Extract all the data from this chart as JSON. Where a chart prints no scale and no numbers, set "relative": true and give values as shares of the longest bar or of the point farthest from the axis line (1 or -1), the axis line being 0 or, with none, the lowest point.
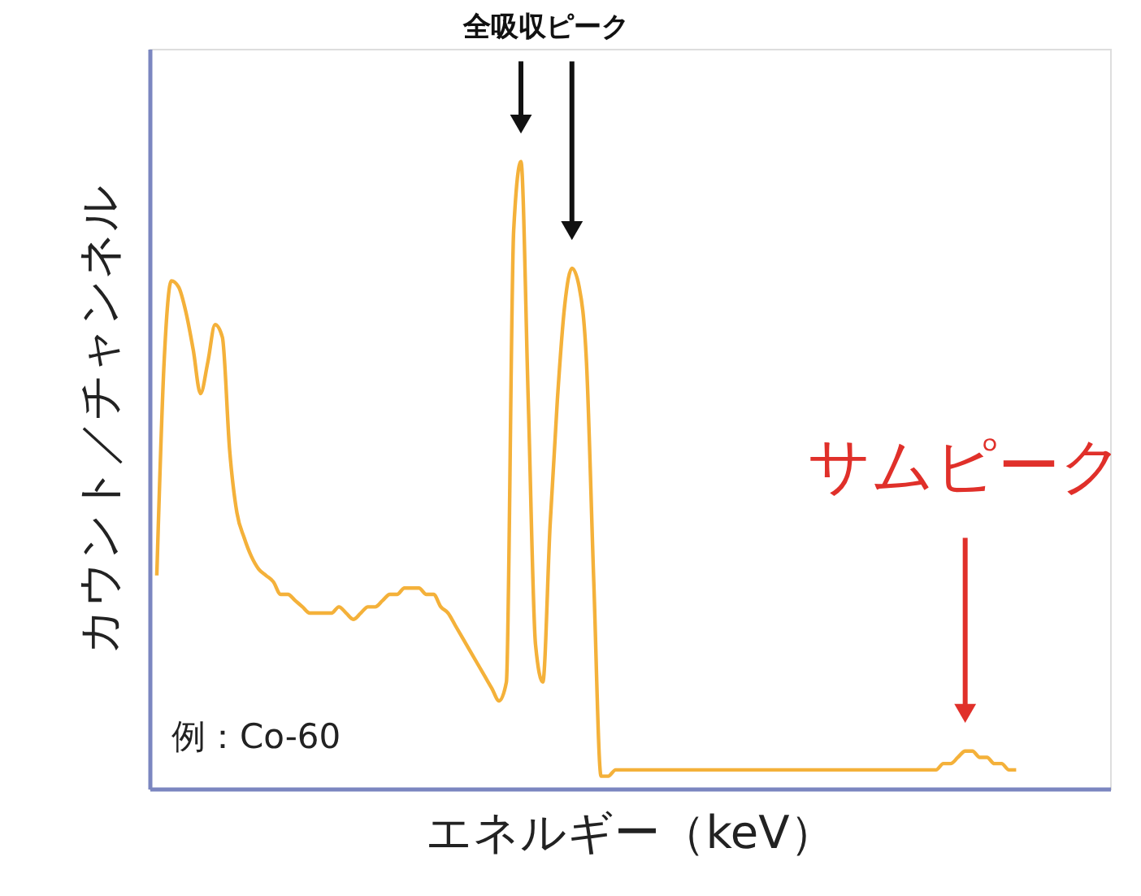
{
  "chart_data": {
    "type": "line",
    "relative": true,
    "xlabel": "エネルギー（keV）",
    "ylabel": "カウント／チャンネル",
    "annotations": [
      "全吸収ピーク",
      "サムピーク",
      "例：Co-60"
    ],
    "categories": [
      null,
      null,
      null,
      null,
      null,
      null,
      null,
      null,
      null,
      null,
      null,
      null,
      null,
      null,
      null,
      null,
      null,
      null,
      null,
      null,
      null,
      null,
      null,
      null,
      null,
      null,
      null,
      null,
      null,
      null,
      null,
      null,
      null,
      null,
      null,
      null,
      null,
      null,
      null,
      null,
      null,
      null,
      null,
      null,
      null,
      null,
      null,
      null,
      null,
      null,
      null,
      null,
      null,
      null,
      null,
      null,
      null,
      null,
      null,
      null,
      null,
      null,
      null,
      null,
      null,
      null,
      null,
      null,
      null,
      null,
      null,
      null,
      null,
      null,
      null,
      null,
      null,
      null,
      null,
      null,
      null,
      null,
      null,
      null,
      null,
      null,
      null,
      null,
      null,
      null,
      null,
      null,
      null,
      null,
      null,
      null,
      null,
      null,
      null,
      null,
      null,
      null,
      null,
      null,
      null,
      null,
      null,
      null,
      null,
      null,
      null,
      null,
      null,
      null,
      null,
      null,
      null,
      null,
      null
    ],
    "series": [
      {
        "color": "#f4b13a",
        "values": [
          0.34,
          0.68,
          0.81,
          0.8,
          0.76,
          0.7,
          0.63,
          0.68,
          0.74,
          0.72,
          0.54,
          0.44,
          0.4,
          0.37,
          0.35,
          0.34,
          0.33,
          0.31,
          0.31,
          0.3,
          0.29,
          0.28,
          0.28,
          0.28,
          0.28,
          0.29,
          0.28,
          0.27,
          0.28,
          0.29,
          0.29,
          0.3,
          0.31,
          0.31,
          0.32,
          0.32,
          0.32,
          0.31,
          0.31,
          0.29,
          0.28,
          0.26,
          0.24,
          0.22,
          0.2,
          0.18,
          0.16,
          0.14,
          0.17,
          0.89,
          1,
          0.62,
          0.23,
          0.17,
          0.42,
          0.62,
          0.77,
          0.83,
          0.8,
          0.68,
          0.33,
          0.02,
          0.02,
          0.03,
          0.03,
          0.03,
          0.03,
          0.03,
          0.03,
          0.03,
          0.03,
          0.03,
          0.03,
          0.03,
          0.03,
          0.03,
          0.03,
          0.03,
          0.03,
          0.03,
          0.03,
          0.03,
          0.03,
          0.03,
          0.03,
          0.03,
          0.03,
          0.03,
          0.03,
          0.03,
          0.03,
          0.03,
          0.03,
          0.03,
          0.03,
          0.03,
          0.03,
          0.03,
          0.03,
          0.03,
          0.03,
          0.03,
          0.03,
          0.03,
          0.03,
          0.03,
          0.03,
          0.03,
          0.04,
          0.04,
          0.05,
          0.06,
          0.06,
          0.05,
          0.05,
          0.04,
          0.04,
          0.03,
          0.03
        ]
      }
    ],
    "grid": false
  }
}
